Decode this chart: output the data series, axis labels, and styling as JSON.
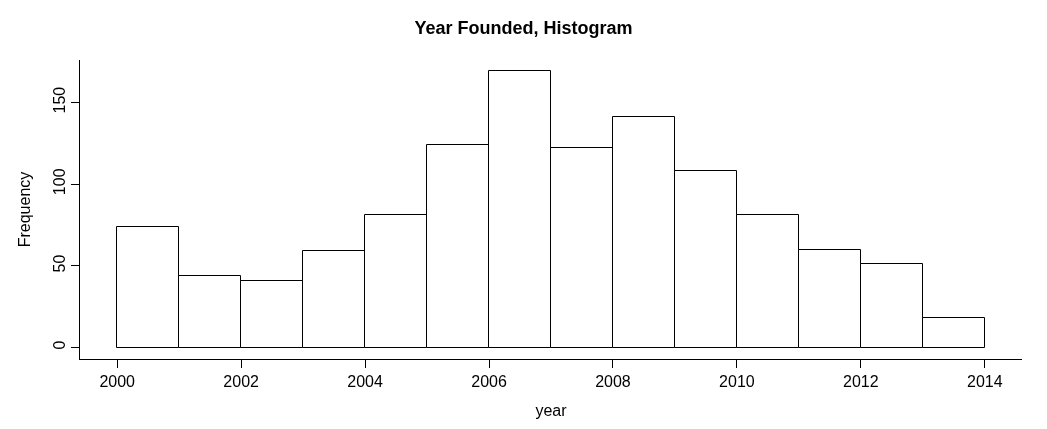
{
  "chart_data": {
    "type": "histogram",
    "title": "Year Founded, Histogram",
    "xlabel": "year",
    "ylabel": "Frequency",
    "bins": [
      2000,
      2001,
      2002,
      2003,
      2004,
      2005,
      2006,
      2007,
      2008,
      2009,
      2010,
      2011,
      2012,
      2013,
      2014
    ],
    "values": [
      74,
      44,
      41,
      59,
      81,
      124,
      169,
      122,
      141,
      108,
      81,
      60,
      51,
      18
    ],
    "color": "#ffffff",
    "xlim": [
      1999.4,
      2014.6
    ],
    "xticks": [
      2000,
      2002,
      2004,
      2006,
      2008,
      2010,
      2012,
      2014
    ],
    "ylim": [
      -7,
      176
    ],
    "yticks": [
      0,
      50,
      100,
      150
    ]
  }
}
